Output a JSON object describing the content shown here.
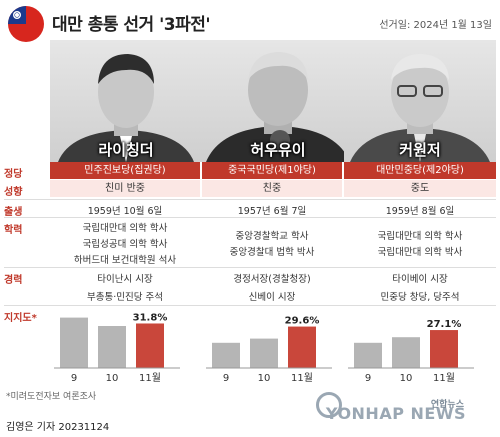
{
  "header": {
    "title": "대만 총통 선거 '3파전'",
    "election_date": "선거일: 2024년 1월 13일"
  },
  "row_labels": {
    "party": "정당",
    "leaning": "성향",
    "birth": "출생",
    "education": "학력",
    "career": "경력",
    "support": "지지도*"
  },
  "candidates": [
    {
      "name": "라이칭더",
      "party": "민주진보당(집권당)",
      "leaning": "친미 반중",
      "birth": "1959년 10월 6일",
      "education": [
        "국립대만대 의학 학사",
        "국립성공대 의학 학사",
        "하버드대 보건대학원 석사"
      ],
      "career": [
        "타이난시 시장",
        "부총통·민진당 주석"
      ]
    },
    {
      "name": "허우유이",
      "party": "중국국민당(제1야당)",
      "leaning": "친중",
      "birth": "1957년 6월 7일",
      "education": [
        "중앙경찰학교 학사",
        "중앙경찰대 법학 박사"
      ],
      "career": [
        "경정서장(경찰청장)",
        "신베이 시장"
      ]
    },
    {
      "name": "커원저",
      "party": "대만민중당(제2야당)",
      "leaning": "중도",
      "birth": "1959년 8월 6일",
      "education": [
        "국립대만대 의학 학사",
        "국립대만대 의학 박사"
      ],
      "career": [
        "타이베이 시장",
        "민중당 창당, 당주석"
      ]
    }
  ],
  "colors": {
    "accent": "#c0392b",
    "accent_light": "#fbe7e4",
    "bar_gray": "#b5b5b5",
    "bar_highlight": "#c9473b"
  },
  "chart_data": [
    {
      "type": "bar",
      "series_name": "라이칭더",
      "categories": [
        "9",
        "10",
        "11월"
      ],
      "values": [
        36,
        30,
        31.8
      ],
      "value_labels": [
        "",
        "",
        "31.8%"
      ],
      "ylim": [
        0,
        40
      ]
    },
    {
      "type": "bar",
      "series_name": "허우유이",
      "categories": [
        "9",
        "10",
        "11월"
      ],
      "values": [
        18,
        21,
        29.6
      ],
      "value_labels": [
        "",
        "",
        "29.6%"
      ],
      "ylim": [
        0,
        40
      ]
    },
    {
      "type": "bar",
      "series_name": "커원저",
      "categories": [
        "9",
        "10",
        "11월"
      ],
      "values": [
        18,
        22,
        27.1
      ],
      "value_labels": [
        "",
        "",
        "27.1%"
      ],
      "ylim": [
        0,
        40
      ]
    }
  ],
  "footnote": "*미려도전자보 여론조사",
  "byline": "김영은 기자  20231124",
  "logo": {
    "main": "YONHAP NEWS",
    "sub": "연합뉴스"
  }
}
